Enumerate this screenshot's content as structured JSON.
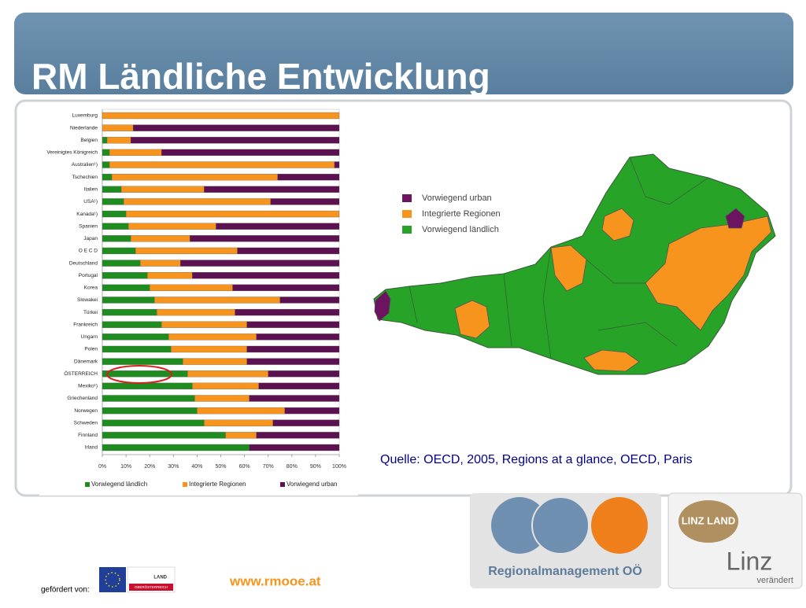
{
  "title": "RM Ländliche Entwicklung",
  "chart_data": {
    "type": "bar",
    "orientation": "horizontal",
    "stacked": true,
    "categories": [
      "Luxemburg",
      "Niederlande",
      "Belgien",
      "Vereinigtes Königreich",
      "Australien¹)",
      "Tschechien",
      "Italien",
      "USA¹)",
      "Kanada¹)",
      "Spanien",
      "Japan",
      "O E C D",
      "Deutschland",
      "Portugal",
      "Korea",
      "Slowakei",
      "Türkei",
      "Frankreich",
      "Ungarn",
      "Polen",
      "Dänemark",
      "ÖSTERREICH",
      "Mexiko¹)",
      "Griechenland",
      "Norwegen",
      "Schweden",
      "Finnland",
      "Irland"
    ],
    "series": [
      {
        "name": "Vorwiegend ländlich",
        "color": "#1f8c1f",
        "values": [
          0,
          0,
          2,
          3,
          3,
          4,
          8,
          9,
          10,
          11,
          12,
          14,
          16,
          19,
          20,
          22,
          23,
          25,
          28,
          29,
          34,
          36,
          38,
          39,
          40,
          43,
          52,
          62
        ]
      },
      {
        "name": "Integrierte Regionen",
        "color": "#f7941d",
        "values": [
          100,
          13,
          10,
          22,
          95,
          70,
          35,
          62,
          90,
          37,
          25,
          43,
          17,
          19,
          35,
          53,
          33,
          36,
          37,
          32,
          27,
          34,
          28,
          23,
          37,
          29,
          13,
          0
        ]
      },
      {
        "name": "Vorwiegend urban",
        "color": "#5c1150",
        "values": [
          0,
          87,
          88,
          75,
          2,
          26,
          57,
          29,
          0,
          52,
          63,
          43,
          67,
          62,
          45,
          25,
          44,
          39,
          35,
          39,
          39,
          30,
          34,
          38,
          23,
          28,
          35,
          38
        ]
      }
    ],
    "xlim": [
      0,
      100
    ],
    "xticks": [
      {
        "value": 0,
        "label": "0%"
      },
      {
        "value": 10,
        "label": "10%"
      },
      {
        "value": 20,
        "label": "20%"
      },
      {
        "value": 30,
        "label": "30%"
      },
      {
        "value": 40,
        "label": "40%"
      },
      {
        "value": 50,
        "label": "50%"
      },
      {
        "value": 60,
        "label": "60%"
      },
      {
        "value": 70,
        "label": "70%"
      },
      {
        "value": 80,
        "label": "80%"
      },
      {
        "value": 90,
        "label": "90%"
      },
      {
        "value": 100,
        "label": "100%"
      }
    ],
    "grid": false,
    "legend": "bottom"
  },
  "map": {
    "legend": [
      "Vorwiegend urban",
      "Integrierte Regionen",
      "Vorwiegend ländlich"
    ]
  },
  "source": "Quelle: OECD, 2005, Regions at a glance, OECD, Paris",
  "url": "www.rmooe.at",
  "funding_label": "gefördert von:",
  "logos": {
    "land": "LAND",
    "land_sub": "OBERÖSTERREICH",
    "rm_name": "Regionalmanagement OÖ",
    "linz_land": "LINZ LAND",
    "linz": "Linz",
    "linz_sub": "verändert"
  }
}
